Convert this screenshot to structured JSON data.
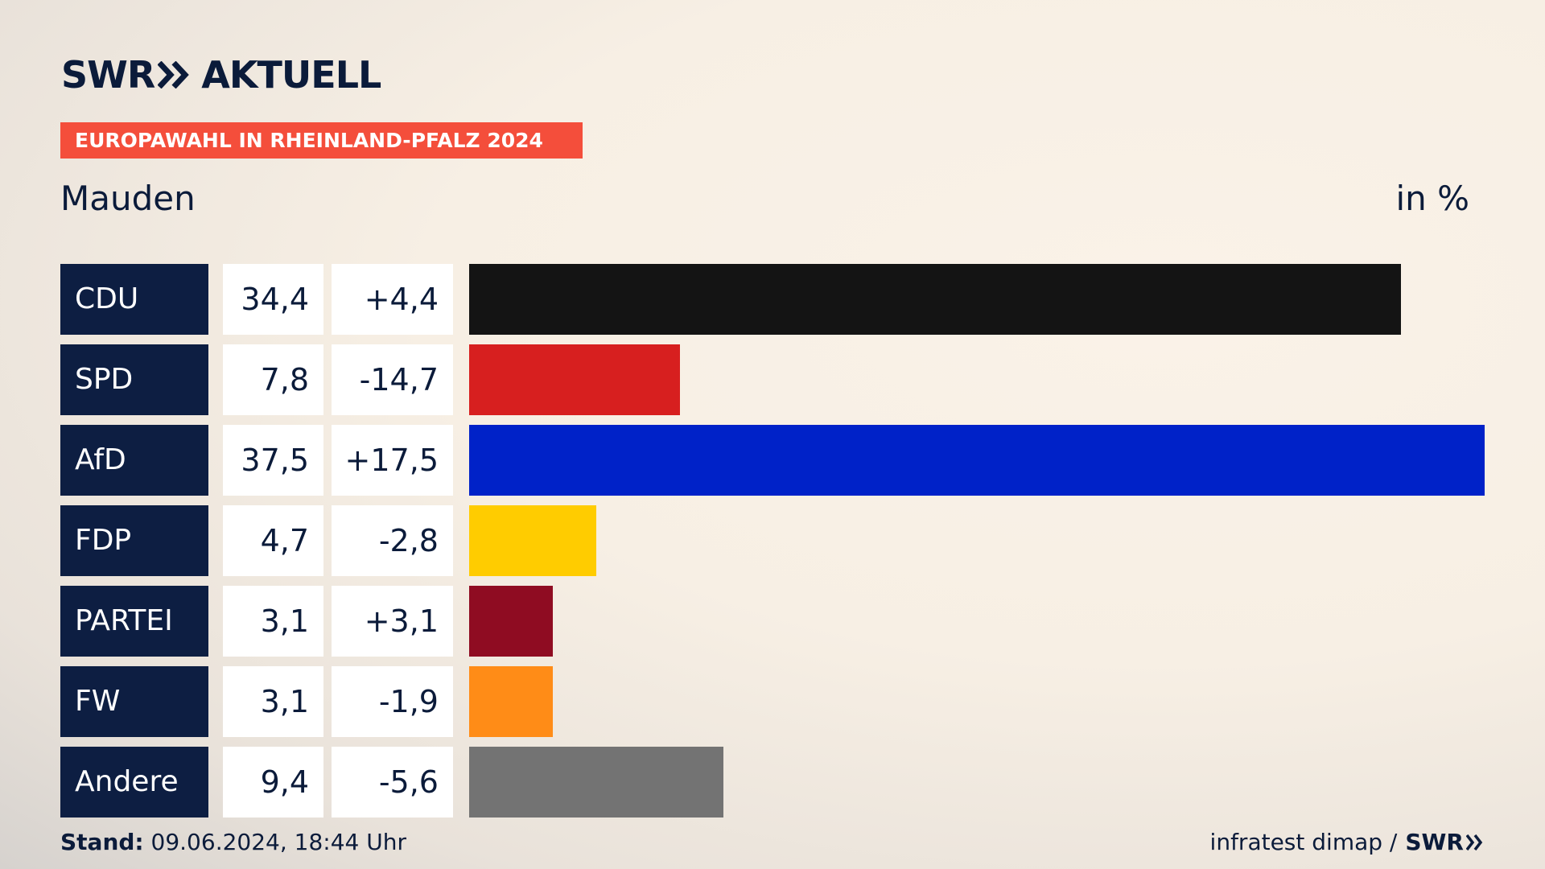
{
  "header": {
    "logo_left": "SWR",
    "logo_right": "AKTUELL",
    "tagline": "EUROPAWAHL IN RHEINLAND-PFALZ 2024",
    "subject": "Mauden",
    "unit": "in %"
  },
  "chart_data": {
    "type": "bar",
    "orientation": "horizontal",
    "categories": [
      "CDU",
      "SPD",
      "AfD",
      "FDP",
      "PARTEI",
      "FW",
      "Andere"
    ],
    "values": [
      34.4,
      7.8,
      37.5,
      4.7,
      3.1,
      3.1,
      9.4
    ],
    "value_labels": [
      "34,4",
      "7,8",
      "37,5",
      "4,7",
      "3,1",
      "3,1",
      "9,4"
    ],
    "changes": [
      4.4,
      -14.7,
      17.5,
      -2.8,
      3.1,
      -1.9,
      -5.6
    ],
    "change_labels": [
      "+4,4",
      "-14,7",
      "+17,5",
      "-2,8",
      "+3,1",
      "-1,9",
      "-5,6"
    ],
    "colors": [
      "#141414",
      "#d71f1f",
      "#0022c8",
      "#ffcc00",
      "#8f0c22",
      "#ff8c17",
      "#737373"
    ],
    "unit": "in %",
    "xlim": [
      0,
      37.5
    ],
    "grid": false,
    "legend": "none"
  },
  "footer": {
    "stand_label": "Stand:",
    "stand_value": "09.06.2024, 18:44 Uhr",
    "source": "infratest dimap /",
    "source_logo": "SWR"
  }
}
